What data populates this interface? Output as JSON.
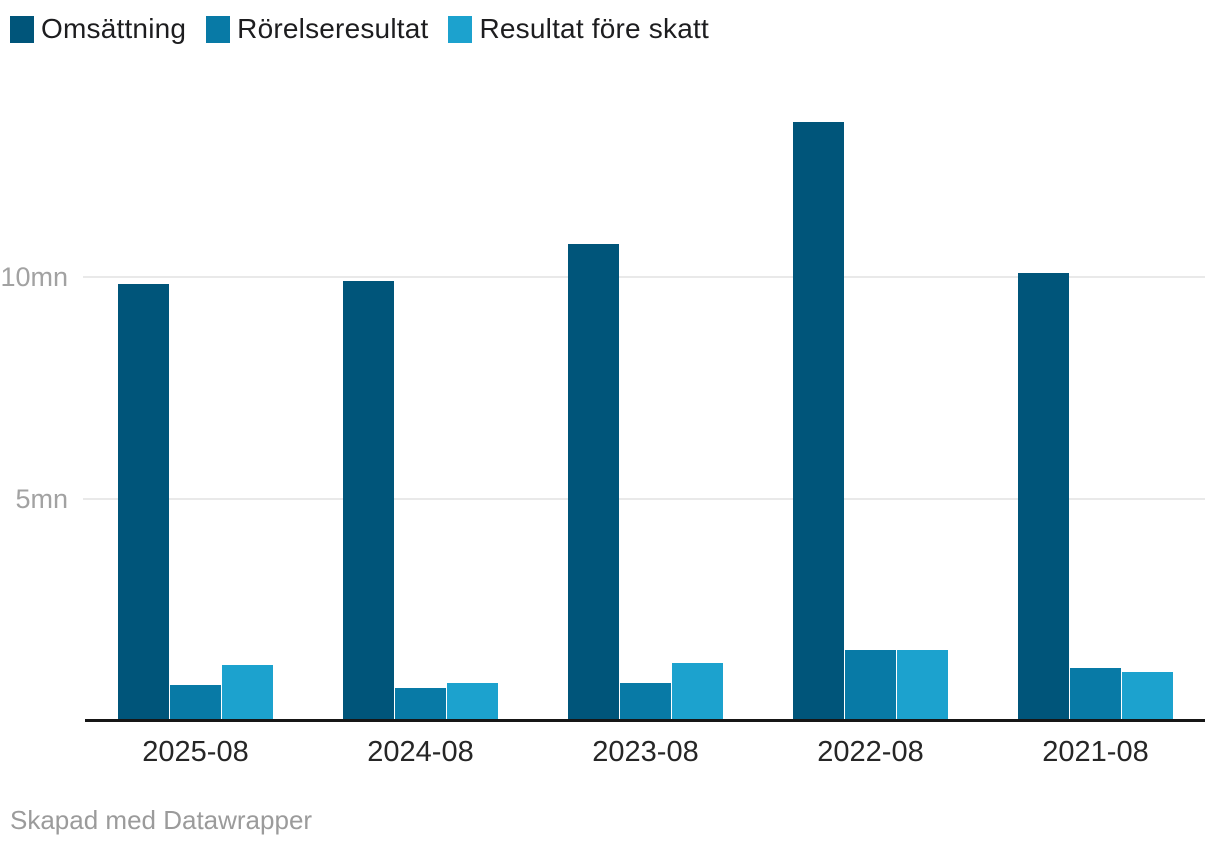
{
  "legend": {
    "items": [
      {
        "label": "Omsättning",
        "color": "#00557a"
      },
      {
        "label": "Rörelseresultat",
        "color": "#087aa6"
      },
      {
        "label": "Resultat före skatt",
        "color": "#1ca2ce"
      }
    ]
  },
  "chart_data": {
    "type": "bar",
    "title": "",
    "categories": [
      "2025-08",
      "2024-08",
      "2023-08",
      "2022-08",
      "2021-08"
    ],
    "series": [
      {
        "name": "Omsättning",
        "color": "#00557a",
        "values": [
          9.85,
          9.9,
          10.75,
          13.5,
          10.1
        ]
      },
      {
        "name": "Rörelseresultat",
        "color": "#087aa6",
        "values": [
          0.8,
          0.75,
          0.85,
          1.6,
          1.2
        ]
      },
      {
        "name": "Resultat före skatt",
        "color": "#1ca2ce",
        "values": [
          1.25,
          0.85,
          1.3,
          1.6,
          1.1
        ]
      }
    ],
    "unit": "mn",
    "xlabel": "",
    "ylabel": "",
    "ylim": [
      0,
      13.5
    ],
    "y_ticks": [
      {
        "value": 5,
        "label": "5mn"
      },
      {
        "value": 10,
        "label": "10mn"
      }
    ],
    "grid": true,
    "legend_position": "top-left"
  },
  "footer": {
    "text": "Skapad med Datawrapper"
  }
}
